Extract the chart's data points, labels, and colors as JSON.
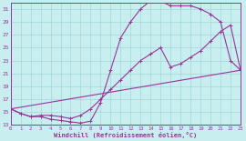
{
  "xlabel": "Windchill (Refroidissement éolien,°C)",
  "xlim": [
    0,
    23
  ],
  "ylim": [
    13,
    32
  ],
  "xticks": [
    0,
    1,
    2,
    3,
    4,
    5,
    6,
    7,
    8,
    9,
    10,
    11,
    12,
    13,
    14,
    15,
    16,
    17,
    18,
    19,
    20,
    21,
    22,
    23
  ],
  "yticks": [
    13,
    15,
    17,
    19,
    21,
    23,
    25,
    27,
    29,
    31
  ],
  "background_color": "#c8eef0",
  "grid_color": "#a0d8d8",
  "line_color": "#993399",
  "line1_x": [
    0,
    1,
    2,
    3,
    4,
    5,
    6,
    7,
    8,
    9,
    10,
    11,
    12,
    13,
    14,
    15,
    16,
    17,
    18,
    19,
    20,
    21,
    22,
    23
  ],
  "line1_y": [
    15.5,
    14.8,
    14.3,
    14.3,
    13.9,
    13.7,
    13.5,
    13.3,
    13.6,
    16.5,
    21.5,
    26.5,
    29.0,
    31.0,
    32.3,
    32.2,
    31.5,
    31.5,
    31.5,
    31.0,
    30.2,
    29.0,
    23.0,
    21.5
  ],
  "line2_x": [
    0,
    1,
    2,
    3,
    4,
    5,
    6,
    7,
    8,
    9,
    10,
    11,
    12,
    13,
    14,
    15,
    16,
    17,
    18,
    19,
    20,
    21,
    22,
    23
  ],
  "line2_y": [
    15.5,
    14.8,
    14.3,
    14.5,
    14.5,
    14.3,
    14.0,
    14.5,
    15.5,
    17.0,
    18.5,
    20.0,
    21.5,
    23.0,
    24.0,
    25.0,
    22.0,
    22.5,
    23.5,
    24.5,
    26.0,
    27.5,
    28.5,
    21.5
  ],
  "line3_x": [
    0,
    23
  ],
  "line3_y": [
    15.5,
    21.5
  ]
}
